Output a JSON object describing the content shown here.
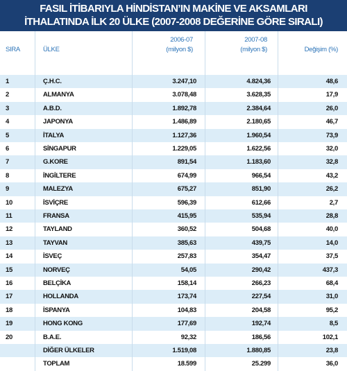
{
  "header": {
    "title_lines": [
      "FASIL İTİBARIYLA HİNDİSTAN’IN MAKİNE VE AKSAMLARI",
      "İTHALATINDA İLK 20 ÜLKE (2007-2008 DEĞERİNE GÖRE SIRALI)"
    ]
  },
  "table": {
    "columns": [
      {
        "label": "SIRA"
      },
      {
        "label": "ÜLKE"
      },
      {
        "label": "2006-07",
        "unit": "(milyon $)"
      },
      {
        "label": "2007-08",
        "unit": "(milyon $)"
      },
      {
        "label": "Değişim (%)"
      }
    ],
    "rows": [
      [
        "1",
        "Ç.H.C.",
        "3.247,10",
        "4.824,36",
        "48,6"
      ],
      [
        "2",
        "ALMANYA",
        "3.078,48",
        "3.628,35",
        "17,9"
      ],
      [
        "3",
        "A.B.D.",
        "1.892,78",
        "2.384,64",
        "26,0"
      ],
      [
        "4",
        "JAPONYA",
        "1.486,89",
        "2.180,65",
        "46,7"
      ],
      [
        "5",
        "İTALYA",
        "1.127,36",
        "1.960,54",
        "73,9"
      ],
      [
        "6",
        "SİNGAPUR",
        "1.229,05",
        "1.622,56",
        "32,0"
      ],
      [
        "7",
        "G.KORE",
        "891,54",
        "1.183,60",
        "32,8"
      ],
      [
        "8",
        "İNGİLTERE",
        "674,99",
        "966,54",
        "43,2"
      ],
      [
        "9",
        "MALEZYA",
        "675,27",
        "851,90",
        "26,2"
      ],
      [
        "10",
        "İSVİÇRE",
        "596,39",
        "612,66",
        "2,7"
      ],
      [
        "11",
        "FRANSA",
        "415,95",
        "535,94",
        "28,8"
      ],
      [
        "12",
        "TAYLAND",
        "360,52",
        "504,68",
        "40,0"
      ],
      [
        "13",
        "TAYVAN",
        "385,63",
        "439,75",
        "14,0"
      ],
      [
        "14",
        "İSVEÇ",
        "257,83",
        "354,47",
        "37,5"
      ],
      [
        "15",
        "NORVEÇ",
        "54,05",
        "290,42",
        "437,3"
      ],
      [
        "16",
        "BELÇİKA",
        "158,14",
        "266,23",
        "68,4"
      ],
      [
        "17",
        "HOLLANDA",
        "173,74",
        "227,54",
        "31,0"
      ],
      [
        "18",
        "İSPANYA",
        "104,83",
        "204,58",
        "95,2"
      ],
      [
        "19",
        "HONG KONG",
        "177,69",
        "192,74",
        "8,5"
      ],
      [
        "20",
        "B.A.E.",
        "92,32",
        "186,56",
        "102,1"
      ],
      [
        null,
        "DİĞER ÜLKELER",
        "1.519,08",
        "1.880,85",
        "23,8"
      ],
      [
        null,
        "TOPLAM",
        "18.599",
        "25.299",
        "36,0"
      ]
    ]
  }
}
